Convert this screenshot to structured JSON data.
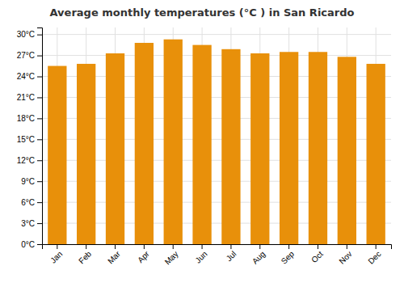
{
  "chart_data": {
    "type": "bar",
    "title": "Average monthly temperatures (°C ) in San Ricardo",
    "categories": [
      "Jan",
      "Feb",
      "Mar",
      "Apr",
      "May",
      "Jun",
      "Jul",
      "Aug",
      "Sep",
      "Oct",
      "Nov",
      "Dec"
    ],
    "values": [
      25.5,
      25.8,
      27.3,
      28.8,
      29.3,
      28.5,
      27.9,
      27.3,
      27.5,
      27.5,
      26.8,
      25.8
    ],
    "color": "#E8900A",
    "ylim": [
      0,
      31
    ],
    "yticks": [
      {
        "value": 0,
        "label": "0°C"
      },
      {
        "value": 3,
        "label": "3°C"
      },
      {
        "value": 6,
        "label": "6°C"
      },
      {
        "value": 9,
        "label": "9°C"
      },
      {
        "value": 12,
        "label": "12°C"
      },
      {
        "value": 15,
        "label": "15°C"
      },
      {
        "value": 18,
        "label": "18°C"
      },
      {
        "value": 21,
        "label": "21°C"
      },
      {
        "value": 24,
        "label": "24°C"
      },
      {
        "value": 27,
        "label": "27°C"
      },
      {
        "value": 30,
        "label": "30°C"
      }
    ],
    "grid": true
  }
}
